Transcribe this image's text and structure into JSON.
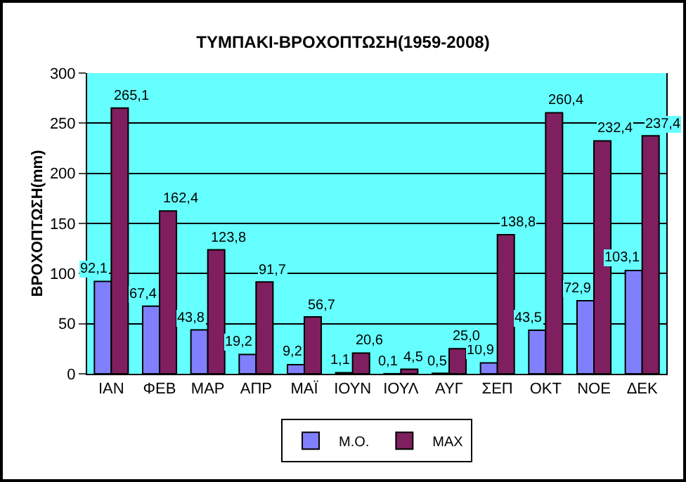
{
  "chart_data": {
    "type": "bar",
    "title": "ΤΥΜΠΑΚΙ-ΒΡΟΧΟΠΤΩΣΗ(1959-2008)",
    "ylabel": "ΒΡΟΧΟΠΤΩΣΗ(mm)",
    "categories": [
      "ΙΑΝ",
      "ΦΕΒ",
      "ΜΑΡ",
      "ΑΠΡ",
      "ΜΑΪ",
      "ΙΟΥΝ",
      "ΙΟΥΛ",
      "ΑΥΓ",
      "ΣΕΠ",
      "ΟΚΤ",
      "ΝΟΕ",
      "ΔΕΚ"
    ],
    "series": [
      {
        "name": "Μ.Ο.",
        "color": "#8080ff",
        "values": [
          92.1,
          67.4,
          43.8,
          19.2,
          9.2,
          1.1,
          0.1,
          0.5,
          10.9,
          43.5,
          72.9,
          103.1
        ],
        "value_labels": [
          "92,1",
          "67,4",
          "43,8",
          "19,2",
          "9,2",
          "1,1",
          "0,1",
          "0,5",
          "10,9",
          "43,5",
          "72,9",
          "103,1"
        ]
      },
      {
        "name": "MAX",
        "color": "#7f1f5f",
        "values": [
          265.1,
          162.4,
          123.8,
          91.7,
          56.7,
          20.6,
          4.5,
          25.0,
          138.8,
          260.4,
          232.4,
          237.4
        ],
        "value_labels": [
          "265,1",
          "162,4",
          "123,8",
          "91,7",
          "56,7",
          "20,6",
          "4,5",
          "25,0",
          "138,8",
          "260,4",
          "232,4",
          "237,4"
        ]
      }
    ],
    "ylim": [
      0,
      300
    ],
    "yticks": [
      0,
      50,
      100,
      150,
      200,
      250,
      300
    ],
    "grid": "y",
    "legend": "bottom"
  }
}
